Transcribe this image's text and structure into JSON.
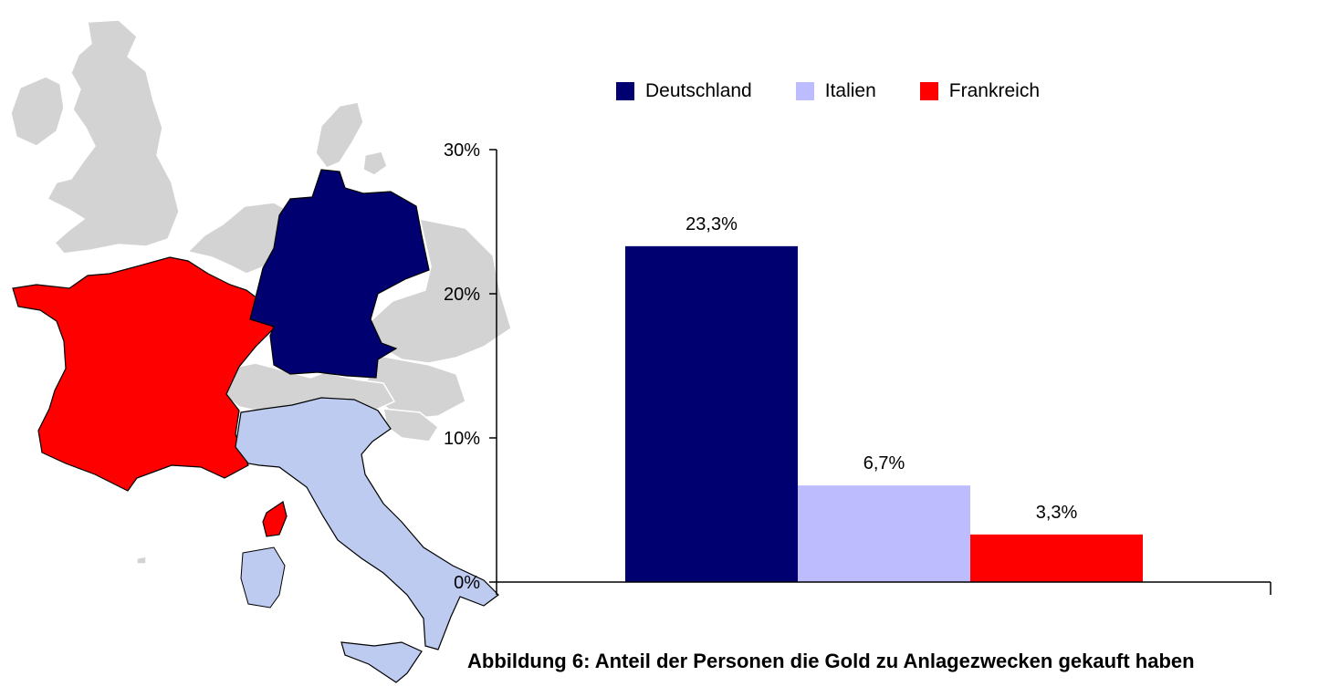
{
  "map": {
    "highlight_colors": {
      "Deutschland": "#000070",
      "Italien": "#bccbef",
      "Frankreich": "#ff0000",
      "other": "#d3d3d3"
    }
  },
  "chart_data": {
    "type": "bar",
    "categories": [
      "Deutschland",
      "Italien",
      "Frankreich"
    ],
    "values": [
      23.3,
      6.7,
      3.3
    ],
    "data_labels": [
      "23,3%",
      "6,7%",
      "3,3%"
    ],
    "colors": [
      "#000070",
      "#bcbcff",
      "#ff0000"
    ],
    "yticks": [
      "0%",
      "10%",
      "20%",
      "30%"
    ],
    "ytick_values": [
      0,
      10,
      20,
      30
    ],
    "ylim": [
      0,
      30
    ],
    "grid": false,
    "legend_position": "top",
    "legend": [
      {
        "label": "Deutschland",
        "color": "#000070"
      },
      {
        "label": "Italien",
        "color": "#bcbcff"
      },
      {
        "label": "Frankreich",
        "color": "#ff0000"
      }
    ],
    "title": "Abbildung 6: Anteil der Personen die Gold zu Anlagezwecken gekauft haben"
  }
}
